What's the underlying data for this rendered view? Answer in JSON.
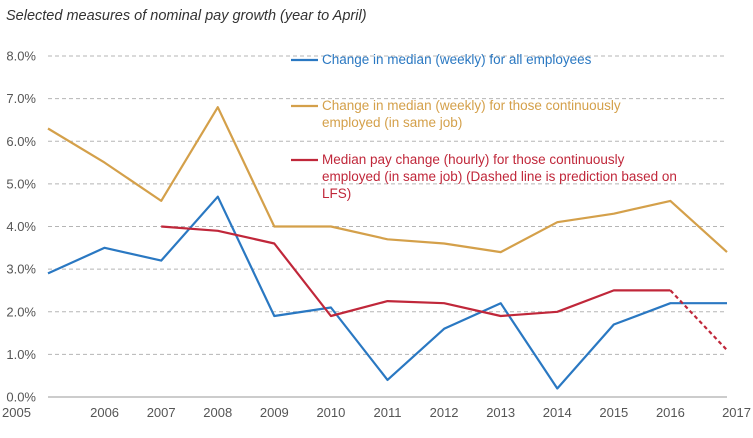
{
  "chart_data": {
    "type": "line",
    "title": "Selected measures of nominal pay growth (year to April)",
    "xlabel": "",
    "ylabel": "",
    "x": [
      "2005",
      "2006",
      "2007",
      "2008",
      "2009",
      "2010",
      "2011",
      "2012",
      "2013",
      "2014",
      "2015",
      "2016",
      "2017"
    ],
    "ylim": [
      0,
      8
    ],
    "y_ticks": [
      "0.0%",
      "1.0%",
      "2.0%",
      "3.0%",
      "4.0%",
      "5.0%",
      "6.0%",
      "7.0%",
      "8.0%"
    ],
    "grid": "horizontal dashed",
    "legend_position": "top-right",
    "series": [
      {
        "name": "Change in median (weekly) for all employees",
        "color": "#2a78c2",
        "values": [
          2.9,
          3.5,
          3.2,
          4.7,
          1.9,
          2.1,
          0.4,
          1.6,
          2.2,
          0.2,
          1.7,
          2.2,
          2.2
        ]
      },
      {
        "name": "Change in median (weekly) for those continuously employed (in same job)",
        "color": "#d4a04a",
        "values": [
          6.3,
          5.5,
          4.6,
          6.8,
          4.0,
          4.0,
          3.7,
          3.6,
          3.4,
          4.1,
          4.3,
          4.6,
          3.4
        ]
      },
      {
        "name": "Median pay change (hourly) for those continuously employed (in same job) (Dashed line is prediction based on LFS)",
        "color": "#c0273a",
        "values": [
          null,
          null,
          4.0,
          3.9,
          3.6,
          1.9,
          2.25,
          2.2,
          1.9,
          2.0,
          2.5,
          2.5,
          1.1
        ],
        "dashed_from": "2016"
      }
    ],
    "legend": [
      {
        "lines": [
          "Change in median (weekly) for all employees"
        ],
        "color": "#2a78c2"
      },
      {
        "lines": [
          "Change in median (weekly) for those continuously",
          "employed (in same job)"
        ],
        "color": "#d4a04a"
      },
      {
        "lines": [
          "Median pay change (hourly) for those continuously",
          "employed (in same job) (Dashed line is prediction based on",
          "LFS)"
        ],
        "color": "#c0273a"
      }
    ]
  }
}
